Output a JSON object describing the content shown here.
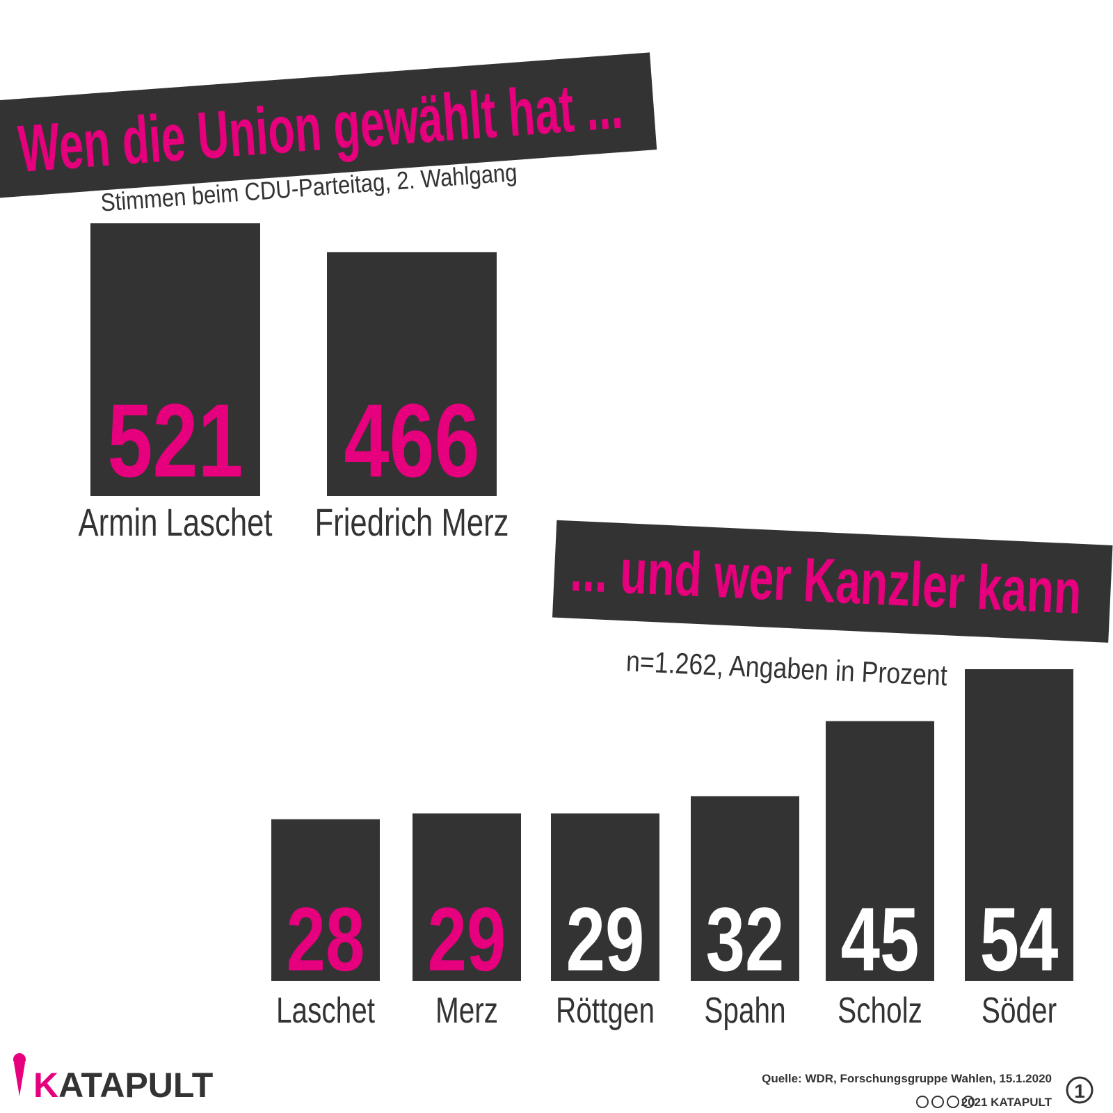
{
  "chart_data": [
    {
      "type": "bar",
      "title": "Wen die Union gewählt hat ...",
      "subtitle": "Stimmen beim CDU-Parteitag, 2. Wahlgang",
      "categories": [
        "Armin Laschet",
        "Friedrich Merz"
      ],
      "values": [
        521,
        466
      ],
      "color": "#333333",
      "label_colors": [
        "#e6007e",
        "#e6007e"
      ]
    },
    {
      "type": "bar",
      "title": "... und wer Kanzler kann",
      "subtitle": "n=1.262, Angaben in Prozent",
      "categories": [
        "Laschet",
        "Merz",
        "Röttgen",
        "Spahn",
        "Scholz",
        "Söder"
      ],
      "values": [
        28,
        29,
        29,
        32,
        45,
        54
      ],
      "color": "#333333",
      "label_colors": [
        "#e6007e",
        "#e6007e",
        "#ffffff",
        "#ffffff",
        "#ffffff",
        "#ffffff"
      ]
    }
  ],
  "footer": {
    "logo_parts": [
      "K",
      "ATAPULT"
    ],
    "source": "Quelle: WDR, Forschungsgruppe Wahlen, 15.1.2020",
    "copyright": "2021 KATAPULT",
    "page": "1"
  }
}
